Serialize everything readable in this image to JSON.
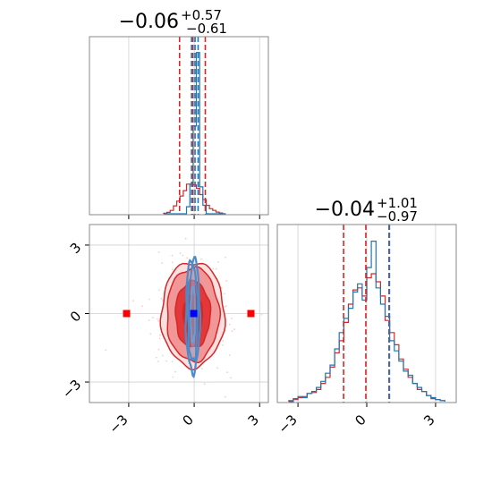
{
  "chart_data": [
    {
      "type": "histogram",
      "panel": "top-left",
      "title_value": "−0.06",
      "title_upper": "+0.57",
      "title_lower": "−0.61",
      "xlim": [
        -4.8,
        3.4
      ],
      "xticks": [
        -3,
        0,
        3
      ],
      "x_ticklabels_shown": false,
      "bin_edges": [
        -1.4,
        -1.25,
        -1.1,
        -0.95,
        -0.8,
        -0.65,
        -0.5,
        -0.35,
        -0.2,
        -0.05,
        0.1,
        0.25,
        0.4,
        0.55,
        0.7,
        0.85,
        1.0,
        1.15,
        1.3,
        1.45
      ],
      "series": [
        {
          "color": "#d62728",
          "counts": [
            0.2,
            0.5,
            1.2,
            2.8,
            4.5,
            6.3,
            8.2,
            10.5,
            10.5,
            10.2,
            9.0,
            6.8,
            5.0,
            3.0,
            1.8,
            1.2,
            0.6,
            0.3,
            0
          ]
        },
        {
          "color": "#1f77b4",
          "counts": [
            0,
            0,
            0,
            0,
            0,
            0,
            0,
            2.5,
            10.5,
            31.0,
            57.0,
            9.5,
            3.0,
            0,
            0,
            0,
            0,
            0,
            0
          ]
        }
      ],
      "ymax": 61,
      "vlines": [
        {
          "x": -0.67,
          "color": "#d62728"
        },
        {
          "x": -0.06,
          "color": "#d62728"
        },
        {
          "x": 0.51,
          "color": "#d62728"
        },
        {
          "x": -0.12,
          "color": "#1f77b4"
        },
        {
          "x": 0.04,
          "color": "#1f77b4"
        },
        {
          "x": 0.18,
          "color": "#1f77b4"
        }
      ]
    },
    {
      "type": "contour",
      "panel": "bottom-left",
      "xlim": [
        -4.8,
        3.4
      ],
      "ylim": [
        -3.9,
        3.9
      ],
      "xticks": [
        -3,
        0,
        3
      ],
      "yticks": [
        -3,
        0,
        3
      ],
      "xticklabels": [
        "−3",
        "0",
        "3"
      ],
      "yticklabels": [
        "3",
        "0",
        "−3"
      ],
      "red_contours": [
        {
          "rx": 1.45,
          "ry": 2.3,
          "fill": "#fbe0e0",
          "opacity": 1
        },
        {
          "rx": 1.2,
          "ry": 2.05,
          "fill": "#f19797",
          "opacity": 1
        },
        {
          "rx": 0.8,
          "ry": 1.45,
          "fill": "#e2383a",
          "opacity": 1
        },
        {
          "rx": 0.45,
          "ry": 0.85,
          "fill": "#d62728",
          "opacity": 1
        }
      ],
      "blue_contours": [
        {
          "rx": 0.32,
          "ry": 2.5
        },
        {
          "rx": 0.22,
          "ry": 2.05
        },
        {
          "rx": 0.12,
          "ry": 1.2
        }
      ],
      "center": [
        -0.06,
        -0.04
      ],
      "outlier_markers": [
        {
          "x": -3.1,
          "y": 0.0,
          "color": "#ff0000"
        },
        {
          "x": 2.6,
          "y": 0.0,
          "color": "#ff0000"
        }
      ],
      "center_marker": {
        "x": -0.02,
        "y": 0.0,
        "color": "#0000ff"
      }
    },
    {
      "type": "histogram",
      "panel": "bottom-right",
      "title_value": "−0.04",
      "title_upper": "+1.01",
      "title_lower": "−0.97",
      "xlim": [
        -3.9,
        3.9
      ],
      "xticks": [
        -3,
        0,
        3
      ],
      "xticklabels": [
        "−3",
        "0",
        "3"
      ],
      "bin_edges": [
        -3.4,
        -3.2,
        -3.0,
        -2.8,
        -2.6,
        -2.4,
        -2.2,
        -2.0,
        -1.8,
        -1.6,
        -1.4,
        -1.2,
        -1.0,
        -0.8,
        -0.6,
        -0.4,
        -0.2,
        0.0,
        0.2,
        0.4,
        0.6,
        0.8,
        1.0,
        1.2,
        1.4,
        1.6,
        1.8,
        2.0,
        2.2,
        2.4,
        2.6,
        2.8,
        3.0,
        3.2,
        3.4
      ],
      "series": [
        {
          "color": "#d62728",
          "counts": [
            1,
            2,
            4,
            5,
            8,
            9,
            12,
            18,
            24,
            34,
            48,
            60,
            78,
            96,
            110,
            112,
            104,
            122,
            126,
            118,
            104,
            80,
            68,
            56,
            42,
            32,
            24,
            18,
            12,
            10,
            6,
            3,
            2,
            1
          ]
        },
        {
          "color": "#1f77b4",
          "counts": [
            0,
            3,
            5,
            4,
            8,
            10,
            14,
            20,
            28,
            36,
            52,
            68,
            82,
            92,
            108,
            116,
            100,
            132,
            158,
            112,
            96,
            84,
            60,
            50,
            40,
            30,
            26,
            18,
            14,
            10,
            6,
            4,
            2,
            1
          ]
        }
      ],
      "ymax": 170,
      "vlines": [
        {
          "x": -1.01,
          "color": "#d62728"
        },
        {
          "x": -0.04,
          "color": "#d62728"
        },
        {
          "x": 0.97,
          "color": "#d62728"
        },
        {
          "x": 0.99,
          "color": "#1f77b4"
        }
      ]
    }
  ]
}
